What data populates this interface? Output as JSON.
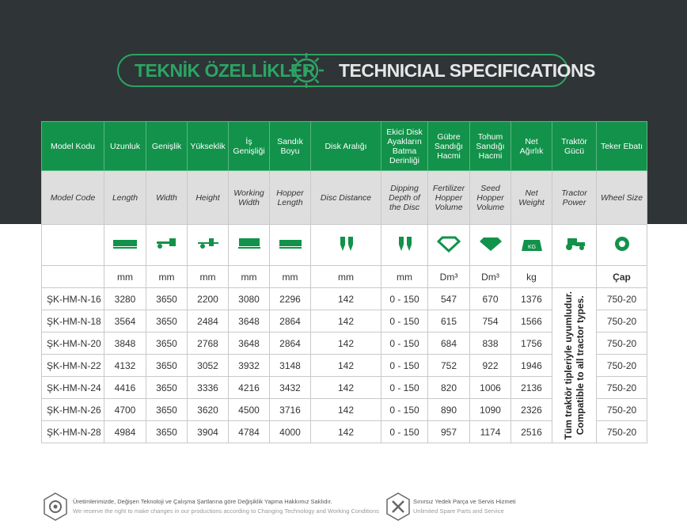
{
  "header": {
    "title_tr": "TEKNİK ÖZELLİKLER",
    "title_en": "TECHNICIAL SPECIFICATIONS"
  },
  "table": {
    "columns": [
      {
        "tr": "Model Kodu",
        "en": "Model Code"
      },
      {
        "tr": "Uzunluk",
        "en": "Length",
        "unit": "mm"
      },
      {
        "tr": "Genişlik",
        "en": "Width",
        "unit": "mm"
      },
      {
        "tr": "Yükseklik",
        "en": "Height",
        "unit": "mm"
      },
      {
        "tr": "İş Genişliği",
        "en": "Working Width",
        "unit": "mm"
      },
      {
        "tr": "Sandık Boyu",
        "en": "Hopper Length",
        "unit": "mm"
      },
      {
        "tr": "Disk Aralığı",
        "en": "Disc Distance",
        "unit": "mm"
      },
      {
        "tr": "Ekici Disk Ayakların Batma Derinliği",
        "en": "Dipping Depth of the Disc",
        "unit": "mm"
      },
      {
        "tr": "Gübre Sandığı Hacmi",
        "en": "Fertilizer Hopper Volume",
        "unit": "Dm³"
      },
      {
        "tr": "Tohum Sandığı Hacmi",
        "en": "Seed Hopper Volume",
        "unit": "Dm³"
      },
      {
        "tr": "Net Ağırlık",
        "en": "Net Weight",
        "unit": "kg"
      },
      {
        "tr": "Traktör Gücü",
        "en": "Tractor Power"
      },
      {
        "tr": "Teker Ebatı",
        "en": "Wheel Size",
        "unit": "Çap"
      }
    ],
    "rows": [
      [
        "ŞK-HM-N-16",
        3280,
        3650,
        2200,
        3080,
        2296,
        142,
        "0 - 150",
        547,
        670,
        1376,
        "750-20"
      ],
      [
        "ŞK-HM-N-18",
        3564,
        3650,
        2484,
        3648,
        2864,
        142,
        "0 - 150",
        615,
        754,
        1566,
        "750-20"
      ],
      [
        "ŞK-HM-N-20",
        3848,
        3650,
        2768,
        3648,
        2864,
        142,
        "0 - 150",
        684,
        838,
        1756,
        "750-20"
      ],
      [
        "ŞK-HM-N-22",
        4132,
        3650,
        3052,
        3932,
        3148,
        142,
        "0 - 150",
        752,
        922,
        1946,
        "750-20"
      ],
      [
        "ŞK-HM-N-24",
        4416,
        3650,
        3336,
        4216,
        3432,
        142,
        "0 - 150",
        820,
        1006,
        2136,
        "750-20"
      ],
      [
        "ŞK-HM-N-26",
        4700,
        3650,
        3620,
        4500,
        3716,
        142,
        "0 - 150",
        890,
        1090,
        2326,
        "750-20"
      ],
      [
        "ŞK-HM-N-28",
        4984,
        3650,
        3904,
        4784,
        4000,
        142,
        "0 - 150",
        957,
        1174,
        2516,
        "750-20"
      ]
    ],
    "tractor_note": [
      "Tüm traktör tipleriyle uyumludur.",
      "Compatible to all tractor types."
    ]
  },
  "footer": [
    {
      "tr": "Üretimlerimizde, Değişen Teknoloji ve Çalışma Şartlarına göre Değişiklik Yapma Hakkımız Saklıdır.",
      "en": "We reserve the right to make changes in our productions according to Changing Technology and Working Conditions"
    },
    {
      "tr": "Sınırsız Yedek Parça ve Servis Hizmeti",
      "en": "Unlimited Spare Parts and Service"
    }
  ]
}
